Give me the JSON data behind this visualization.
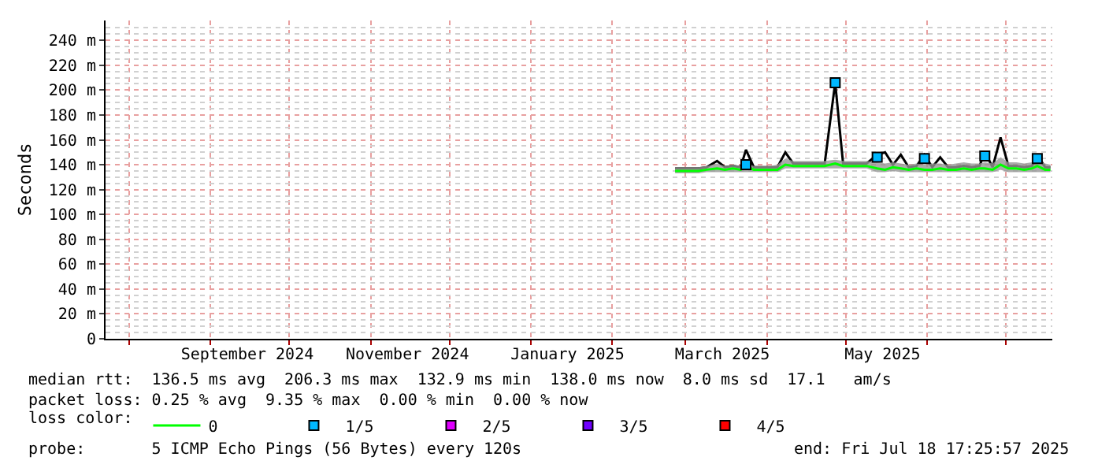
{
  "chart_data": {
    "type": "line",
    "ylabel": "Seconds",
    "x": [
      "2025-02-25",
      "2025-02-28",
      "2025-03-03",
      "2025-03-06",
      "2025-03-09",
      "2025-03-13",
      "2025-03-16",
      "2025-03-19",
      "2025-03-22",
      "2025-03-24",
      "2025-03-27",
      "2025-03-30",
      "2025-04-02",
      "2025-04-05",
      "2025-04-08",
      "2025-04-11",
      "2025-04-14",
      "2025-04-17",
      "2025-04-20",
      "2025-04-23",
      "2025-04-27",
      "2025-04-30",
      "2025-05-03",
      "2025-05-06",
      "2025-05-09",
      "2025-05-13",
      "2025-05-16",
      "2025-05-19",
      "2025-05-22",
      "2025-05-25",
      "2025-05-28",
      "2025-05-31",
      "2025-06-03",
      "2025-06-06",
      "2025-06-09",
      "2025-06-12",
      "2025-06-15",
      "2025-06-18",
      "2025-06-21",
      "2025-06-23",
      "2025-06-26",
      "2025-06-29",
      "2025-07-02",
      "2025-07-05",
      "2025-07-08",
      "2025-07-11",
      "2025-07-13",
      "2025-07-16",
      "2025-07-18"
    ],
    "series": [
      {
        "color": "#000000",
        "values": [
          137,
          137,
          137,
          137,
          138,
          143,
          138,
          139,
          138,
          152,
          138,
          138,
          138,
          138,
          150,
          141,
          141,
          141,
          141,
          141,
          206,
          141,
          141,
          141,
          141,
          148,
          150,
          140,
          148,
          138,
          139,
          148,
          138,
          146,
          138,
          138,
          139,
          138,
          139,
          150,
          138,
          162,
          139,
          139,
          138,
          139,
          148,
          138,
          138
        ]
      },
      {
        "name": "0",
        "color": "#00ff00",
        "values": [
          135,
          135,
          135,
          135,
          136,
          137,
          136,
          137,
          136,
          139,
          136,
          136,
          136,
          136,
          140,
          139,
          139,
          139,
          139,
          139,
          141,
          139,
          139,
          139,
          139,
          137,
          136,
          138,
          137,
          136,
          137,
          136,
          136,
          137,
          136,
          136,
          137,
          136,
          137,
          137,
          136,
          140,
          137,
          137,
          136,
          137,
          139,
          136,
          136
        ],
        "lower": [
          133,
          133,
          133,
          133,
          134,
          134,
          134,
          134,
          134,
          134,
          134,
          134,
          134,
          134,
          137,
          137,
          137,
          137,
          137,
          137,
          137,
          137,
          137,
          137,
          137,
          134,
          134,
          135,
          134,
          134,
          134,
          134,
          134,
          134,
          134,
          134,
          134,
          134,
          134,
          134,
          134,
          136,
          134,
          134,
          134,
          134,
          134,
          134,
          134
        ],
        "upper": [
          138,
          138,
          138,
          138,
          139,
          141,
          139,
          140,
          139,
          142,
          139,
          139,
          139,
          140,
          145,
          143,
          143,
          143,
          143,
          143,
          144,
          143,
          143,
          143,
          143,
          142,
          141,
          142,
          141,
          140,
          141,
          140,
          141,
          141,
          140,
          141,
          142,
          141,
          141,
          142,
          141,
          146,
          142,
          142,
          141,
          142,
          143,
          141,
          140
        ]
      },
      {
        "name": "1/5",
        "type": "scatter",
        "marker": "square",
        "color": "#00b8ff",
        "values": [
          null,
          null,
          null,
          null,
          null,
          null,
          null,
          null,
          null,
          140,
          null,
          null,
          null,
          null,
          null,
          null,
          null,
          null,
          null,
          null,
          206,
          null,
          null,
          null,
          null,
          146,
          null,
          null,
          null,
          null,
          null,
          145,
          null,
          null,
          null,
          null,
          null,
          null,
          null,
          147,
          null,
          null,
          null,
          null,
          null,
          null,
          145,
          null,
          null
        ]
      },
      {
        "name": "2/5",
        "type": "scatter",
        "marker": "square",
        "color": "#e000ff",
        "values": [
          null,
          null,
          null,
          null,
          null,
          null,
          null,
          null,
          null,
          null,
          null,
          null,
          null,
          null,
          null,
          null,
          null,
          null,
          null,
          null,
          null,
          null,
          null,
          null,
          null,
          null,
          null,
          null,
          null,
          null,
          null,
          null,
          null,
          null,
          null,
          null,
          null,
          null,
          null,
          null,
          null,
          null,
          null,
          null,
          null,
          null,
          null,
          null,
          null
        ]
      },
      {
        "name": "3/5",
        "type": "scatter",
        "marker": "square",
        "color": "#7000ff",
        "values": [
          null,
          null,
          null,
          null,
          null,
          null,
          null,
          null,
          null,
          null,
          null,
          null,
          null,
          null,
          null,
          null,
          null,
          null,
          null,
          null,
          null,
          null,
          null,
          null,
          null,
          null,
          null,
          null,
          null,
          null,
          null,
          null,
          null,
          null,
          null,
          null,
          null,
          null,
          null,
          null,
          null,
          null,
          null,
          null,
          null,
          null,
          null,
          null,
          null
        ]
      },
      {
        "name": "4/5",
        "type": "scatter",
        "marker": "square",
        "color": "#ff0000",
        "values": [
          null,
          null,
          null,
          null,
          null,
          null,
          null,
          null,
          null,
          null,
          null,
          null,
          null,
          null,
          null,
          null,
          null,
          null,
          null,
          null,
          null,
          null,
          null,
          null,
          null,
          null,
          null,
          null,
          null,
          null,
          null,
          null,
          null,
          null,
          null,
          null,
          null,
          null,
          null,
          null,
          null,
          null,
          null,
          null,
          null,
          null,
          null,
          null,
          null
        ]
      }
    ],
    "xlim": [
      "2024-07-23",
      "2025-07-18T17:25"
    ],
    "xticks": [
      {
        "value": "2024-09-15",
        "label": "September 2024"
      },
      {
        "value": "2024-11-15",
        "label": "November 2024"
      },
      {
        "value": "2025-01-15",
        "label": "January 2025"
      },
      {
        "value": "2025-03-15",
        "label": "March 2025"
      },
      {
        "value": "2025-05-15",
        "label": "May 2025"
      }
    ],
    "ylim": [
      0,
      256
    ],
    "yticks": [
      0,
      {
        "value": 20,
        "label": "20 m"
      },
      {
        "value": 40,
        "label": "40 m"
      },
      {
        "value": 60,
        "label": "60 m"
      },
      {
        "value": 80,
        "label": "80 m"
      },
      {
        "value": 100,
        "label": "100 m"
      },
      {
        "value": 120,
        "label": "120 m"
      },
      {
        "value": 140,
        "label": "140 m"
      },
      {
        "value": 160,
        "label": "160 m"
      },
      {
        "value": 180,
        "label": "180 m"
      },
      {
        "value": 200,
        "label": "200 m"
      },
      {
        "value": 220,
        "label": "220 m"
      },
      {
        "value": 240,
        "label": "240 m"
      }
    ],
    "grid": true,
    "legend": "bottom",
    "legend_title": "loss color:",
    "annotations": [
      "median rtt:  136.5 ms avg  206.3 ms max  132.9 ms min  138.0 ms now  8.0 ms sd  17.1   am/s",
      "packet loss: 0.25 % avg  9.35 % max  0.00 % min  0.00 % now",
      "probe:       5 ICMP Echo Pings (56 Bytes) every 120s",
      "end: Fri Jul 18 17:25:57 2025"
    ]
  }
}
